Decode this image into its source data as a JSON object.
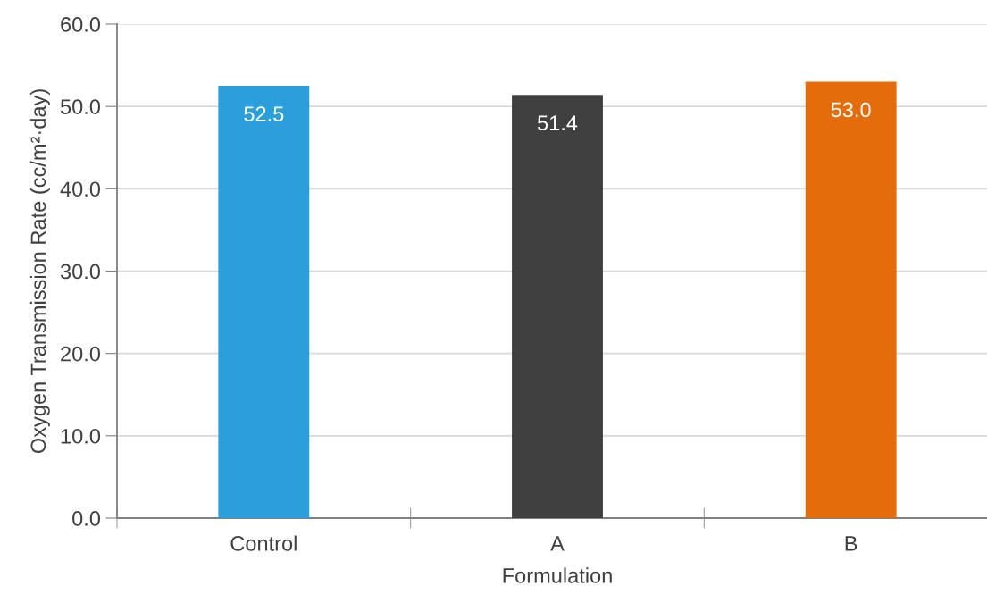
{
  "chart_data": {
    "type": "bar",
    "xlabel": "Formulation",
    "ylabel": "Oxygen Transmission Rate (cc/m²·day)",
    "categories": [
      "Control",
      "A",
      "B"
    ],
    "values": [
      52.5,
      51.4,
      53.0
    ],
    "value_labels": [
      "52.5",
      "51.4",
      "53.0"
    ],
    "colors": [
      "#2a9fdb",
      "#404040",
      "#e46c0a"
    ],
    "ylim": [
      0,
      60
    ],
    "yticks": [
      {
        "value": 0,
        "label": "0.0"
      },
      {
        "value": 10,
        "label": "10.0"
      },
      {
        "value": 20,
        "label": "20.0"
      },
      {
        "value": 30,
        "label": "30.0"
      },
      {
        "value": 40,
        "label": "40.0"
      },
      {
        "value": 50,
        "label": "50.0"
      },
      {
        "value": 60,
        "label": "60.0"
      }
    ],
    "grid": "y",
    "legend": false
  }
}
